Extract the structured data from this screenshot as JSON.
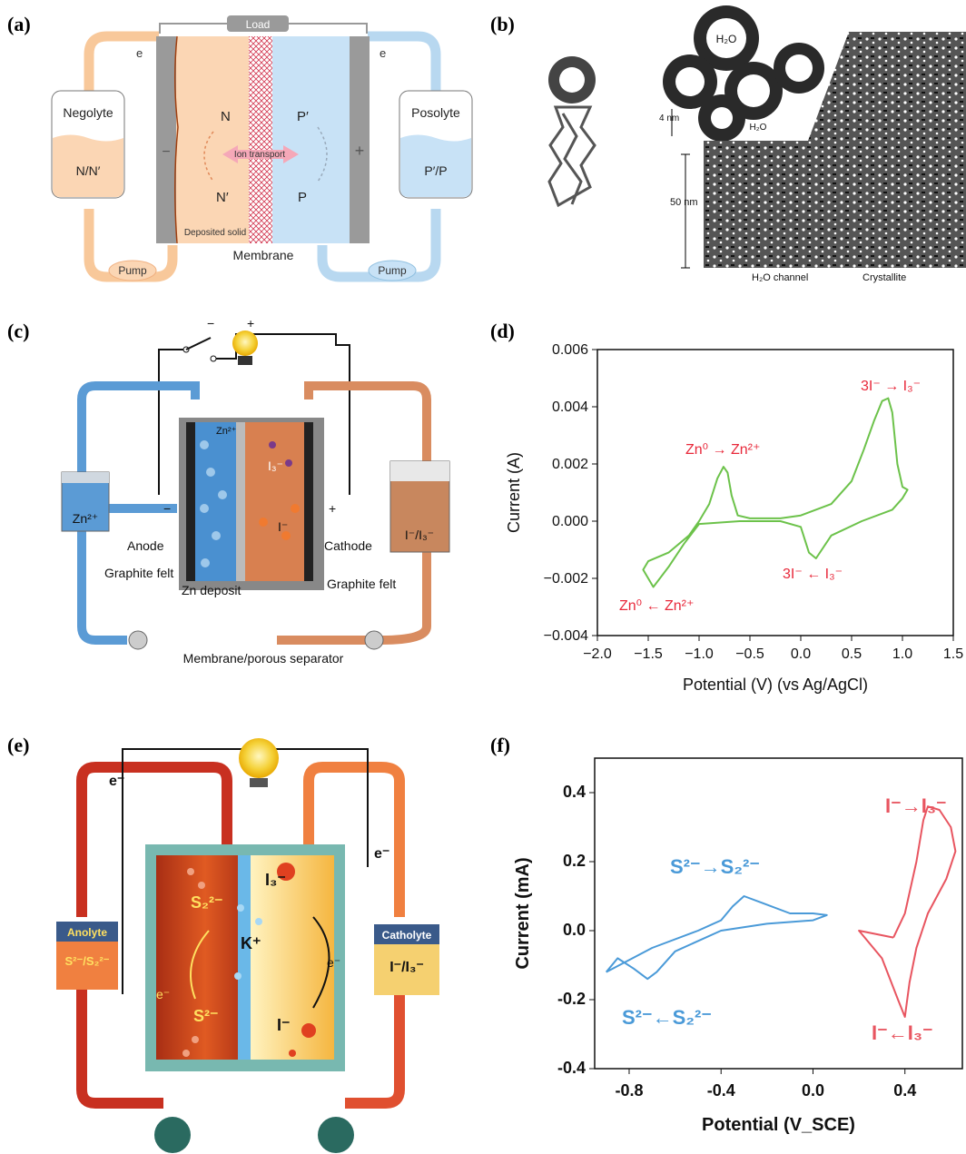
{
  "panels": {
    "a": {
      "label": "(a)",
      "load": "Load",
      "electron_left": "e",
      "electron_right": "e",
      "negolyte": "Negolyte",
      "negolyte_species": "N/N′",
      "posolyte": "Posolyte",
      "posolyte_species": "P′/P",
      "n": "N",
      "n_prime": "N′",
      "p_prime": "P′",
      "p": "P",
      "ion_transport": "Ion transport",
      "deposited_solid": "Deposited solid",
      "membrane": "Membrane",
      "pump_left": "Pump",
      "pump_right": "Pump",
      "minus": "−",
      "plus": "+"
    },
    "b": {
      "label": "(b)",
      "water_cluster": "H₂O",
      "water_small": "H₂O",
      "scale_4nm": "4 nm",
      "scale_50nm": "50 nm",
      "h2o_channel": "H₂O channel",
      "crystallite": "Crystallite"
    },
    "c": {
      "label": "(c)",
      "minus": "−",
      "plus": "+",
      "minus_electrode": "−",
      "plus_electrode": "+",
      "zn_tank": "Zn²⁺",
      "i_tank": "I⁻/I₃⁻",
      "zn_ion": "Zn²⁺",
      "i3": "I₃⁻",
      "i_minus": "I⁻",
      "anode": "Anode",
      "cathode": "Cathode",
      "graphite_felt_left": "Graphite felt",
      "graphite_felt_right": "Graphite felt",
      "zn_deposit": "Zn deposit",
      "membrane": "Membrane/porous separator"
    },
    "d": {
      "label": "(d)",
      "ann_zn_ox": "Zn⁰ → Zn²⁺",
      "ann_zn_red": "Zn⁰ ← Zn²⁺",
      "ann_i_ox": "3I⁻ → I₃⁻",
      "ann_i_red": "3I⁻ ← I₃⁻"
    },
    "e": {
      "label": "(e)",
      "e_left": "e⁻",
      "e_right": "e⁻",
      "anolyte": "Anolyte",
      "anolyte_species": "S²⁻/S₂²⁻",
      "catholyte": "Catholyte",
      "catholyte_species": "I⁻/I₃⁻",
      "s22": "S₂²⁻",
      "s2": "S²⁻",
      "k_plus": "K⁺",
      "i3": "I₃⁻",
      "i_minus": "I⁻",
      "e_inner_left": "e⁻",
      "e_inner_right": "e⁻"
    },
    "f": {
      "label": "(f)",
      "ann_s_ox": "S²⁻→S₂²⁻",
      "ann_s_red": "S²⁻←S₂²⁻",
      "ann_i_ox": "I⁻→I₃⁻",
      "ann_i_red": "I⁻←I₃⁻"
    }
  },
  "chart_data": [
    {
      "panel": "d",
      "type": "line",
      "xlabel": "Potential (V) (vs Ag/AgCl)",
      "ylabel": "Current (A)",
      "xlim": [
        -2.0,
        1.5
      ],
      "ylim": [
        -0.004,
        0.006
      ],
      "x_ticks": [
        "−2.0",
        "−1.5",
        "−1.0",
        "−0.5",
        "0.0",
        "0.5",
        "1.0",
        "1.5"
      ],
      "y_ticks": [
        "−0.004",
        "−0.002",
        "0.000",
        "0.002",
        "0.004",
        "0.006"
      ],
      "grid": false,
      "color": "#6cc24a",
      "series": [
        {
          "x": [
            -1.0,
            -0.9,
            -0.82,
            -0.76,
            -0.72,
            -0.68,
            -0.62,
            -0.5,
            -0.2,
            0.0,
            0.3,
            0.5,
            0.62,
            0.72,
            0.8,
            0.86,
            0.9,
            0.95,
            1.0,
            1.05,
            1.0,
            0.9,
            0.6,
            0.3,
            0.15,
            0.08,
            0.0,
            -0.2,
            -0.6,
            -1.0,
            -1.15,
            -1.3,
            -1.45,
            -1.55,
            -1.5,
            -1.3,
            -1.1,
            -1.0
          ],
          "y": [
            0.0,
            0.0006,
            0.0015,
            0.0019,
            0.0017,
            0.0009,
            0.0002,
            0.0001,
            0.0001,
            0.0002,
            0.0006,
            0.0014,
            0.0025,
            0.0035,
            0.0042,
            0.0043,
            0.0038,
            0.002,
            0.0012,
            0.0011,
            0.0008,
            0.0004,
            0.0,
            -0.0005,
            -0.0013,
            -0.0011,
            -0.0002,
            0.0,
            0.0,
            -0.0001,
            -0.0008,
            -0.0016,
            -0.0023,
            -0.0017,
            -0.0014,
            -0.0011,
            -0.0005,
            0.0
          ]
        }
      ]
    },
    {
      "panel": "f",
      "type": "line",
      "xlabel": "Potential (V_SCE)",
      "ylabel": "Current (mA)",
      "xlim": [
        -0.95,
        0.65
      ],
      "ylim": [
        -0.4,
        0.5
      ],
      "x_ticks": [
        "-0.8",
        "-0.4",
        "0.0",
        "0.4"
      ],
      "y_ticks": [
        "0.4",
        "0.2",
        "0.0",
        "-0.2",
        "-0.4"
      ],
      "grid": false,
      "series": [
        {
          "color": "#4a9ad8",
          "x": [
            -0.9,
            -0.7,
            -0.5,
            -0.4,
            -0.35,
            -0.3,
            -0.22,
            -0.1,
            0.0,
            0.06,
            0.0,
            -0.2,
            -0.4,
            -0.6,
            -0.68,
            -0.72,
            -0.78,
            -0.85,
            -0.9
          ],
          "y": [
            -0.12,
            -0.05,
            0.0,
            0.03,
            0.07,
            0.1,
            0.08,
            0.05,
            0.05,
            0.045,
            0.03,
            0.02,
            0.0,
            -0.06,
            -0.12,
            -0.14,
            -0.11,
            -0.08,
            -0.12
          ]
        },
        {
          "color": "#e85560",
          "x": [
            0.35,
            0.4,
            0.45,
            0.48,
            0.5,
            0.55,
            0.6,
            0.62,
            0.58,
            0.5,
            0.45,
            0.42,
            0.4,
            0.37,
            0.3,
            0.2,
            0.35
          ],
          "y": [
            -0.02,
            0.05,
            0.2,
            0.32,
            0.36,
            0.35,
            0.3,
            0.23,
            0.15,
            0.05,
            -0.05,
            -0.15,
            -0.25,
            -0.2,
            -0.08,
            0.0,
            -0.02
          ]
        }
      ]
    }
  ]
}
